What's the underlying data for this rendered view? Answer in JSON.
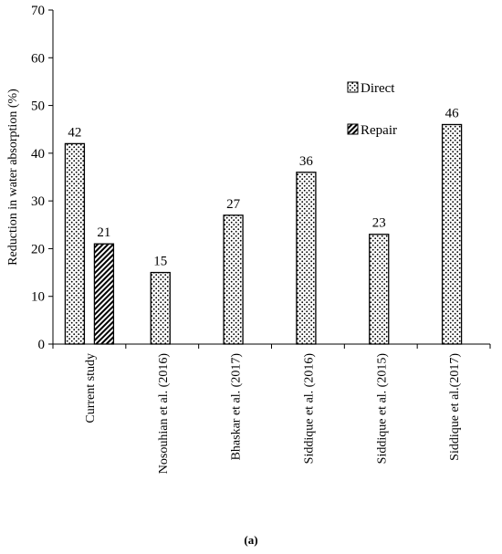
{
  "chart_data": {
    "type": "bar",
    "ylabel": "Reduction in water absorption (%)",
    "xlabel": "",
    "ylim": [
      0,
      70
    ],
    "yticks": [
      0,
      10,
      20,
      30,
      40,
      50,
      60,
      70
    ],
    "grid": false,
    "legend_position": "right-middle",
    "categories": [
      "Current study",
      "Nosouhian et al. (2016)",
      "Bhaskar et al. (2017)",
      "Siddique et al. (2016)",
      "Siddique et al. (2015)",
      "Siddique et al.(2017)"
    ],
    "series": [
      {
        "name": "Direct",
        "values": [
          42,
          15,
          27,
          36,
          23,
          46
        ],
        "pattern": "dots"
      },
      {
        "name": "Repair",
        "values": [
          21,
          null,
          null,
          null,
          null,
          null
        ],
        "pattern": "hatch"
      }
    ]
  },
  "caption": "(a)"
}
